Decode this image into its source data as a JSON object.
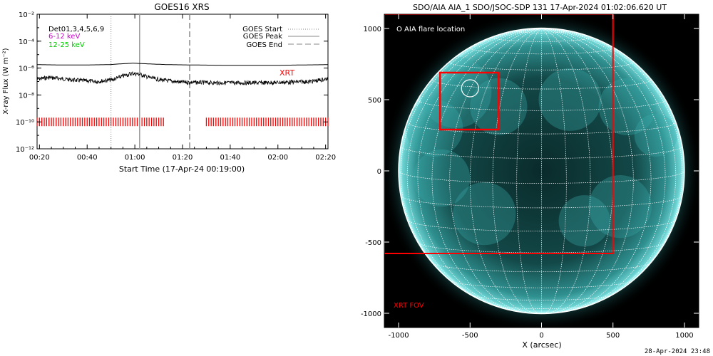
{
  "goes_panel": {
    "title": "GOES16 XRS",
    "xlabel": "Start Time (17-Apr-24 00:19:00)",
    "ylabel": "X-ray Flux (W m⁻²)",
    "legend_left": [
      "Det01,3,4,5,6,9",
      "6-12 keV",
      "12-25 keV"
    ],
    "legend_left_colors": [
      "#000000",
      "#cc00cc",
      "#00cc00"
    ],
    "legend_right": [
      {
        "label": "GOES Start",
        "style": "dotted"
      },
      {
        "label": "GOES Peak",
        "style": "solid"
      },
      {
        "label": "GOES End",
        "style": "dashed"
      }
    ],
    "xrt_label": "XRT",
    "xrt_color": "#ff0000"
  },
  "aia_panel": {
    "title": "SDO/AIA AIA_1 SDO/JSOC-SDP 131 17-Apr-2024 01:02:06.620 UT",
    "flare_legend": "O AIA flare location",
    "xrt_fov_label": "XRT FOV",
    "xlabel": "X (arcsec)",
    "fov_color": "#ff0000"
  },
  "footer": {
    "timestamp": "28-Apr-2024 23:48"
  },
  "chart_data": [
    {
      "type": "line",
      "title": "GOES16 XRS",
      "xlabel": "Start Time (17-Apr-24 00:19:00)",
      "ylabel": "X-ray Flux (W m⁻²)",
      "yscale": "log",
      "xlim_minutes": [
        0,
        122
      ],
      "ylim": [
        1e-12,
        0.01
      ],
      "x_ticks": [
        "00:20",
        "00:40",
        "01:00",
        "01:20",
        "01:40",
        "02:00",
        "02:20"
      ],
      "x_tick_minutes": [
        1,
        21,
        41,
        61,
        81,
        101,
        121
      ],
      "y_ticks": [
        "10⁻²",
        "10⁻⁴",
        "10⁻⁶",
        "10⁻⁸",
        "10⁻¹⁰",
        "10⁻¹²"
      ],
      "y_tick_values": [
        0.01,
        0.0001,
        1e-06,
        1e-08,
        1e-10,
        1e-12
      ],
      "series": [
        {
          "channel": "long",
          "x_minutes": [
            0,
            10,
            20,
            30,
            36,
            40,
            43,
            48,
            55,
            65,
            80,
            100,
            122
          ],
          "values": [
            1.8e-06,
            1.7e-06,
            1.7e-06,
            1.8e-06,
            2.1e-06,
            2.3e-06,
            2.2e-06,
            2e-06,
            1.8e-06,
            1.7e-06,
            1.6e-06,
            1.6e-06,
            1.8e-06
          ]
        },
        {
          "channel": "short",
          "x_minutes": [
            0,
            5,
            15,
            25,
            32,
            36,
            40,
            43,
            47,
            52,
            60,
            75,
            95,
            115,
            122
          ],
          "values": [
            1.5e-07,
            2e-07,
            1.3e-07,
            1e-07,
            1.4e-07,
            2.6e-07,
            4e-07,
            3.5e-07,
            2e-07,
            1.3e-07,
            9e-08,
            8e-08,
            8e-08,
            1e-07,
            1.6e-07
          ]
        }
      ],
      "markers": {
        "goes_start_min": 31,
        "goes_peak_min": 43,
        "goes_end_min": 64
      },
      "xrt_coverage_minutes": [
        [
          0,
          53
        ],
        [
          71,
          122
        ]
      ],
      "xrt_level": 1e-10
    },
    {
      "type": "map",
      "title": "SDO/AIA AIA_1 SDO/JSOC-SDP 131 17-Apr-2024 01:02:06.620 UT",
      "xlabel": "X (arcsec)",
      "xlim": [
        -1100,
        1100
      ],
      "ylim": [
        -1100,
        1100
      ],
      "x_ticks": [
        -1000,
        -500,
        0,
        500,
        1000
      ],
      "y_ticks": [
        1000,
        500,
        0,
        -500,
        -1000
      ],
      "solar_radius_arcsec": 1000,
      "xrt_fov": {
        "x": [
          -1100,
          500
        ],
        "y": [
          -580,
          1100
        ]
      },
      "roi_box": {
        "x": [
          -710,
          -300
        ],
        "y": [
          290,
          690
        ]
      },
      "flare_location": {
        "x": -500,
        "y": 580,
        "r": 60
      }
    }
  ]
}
